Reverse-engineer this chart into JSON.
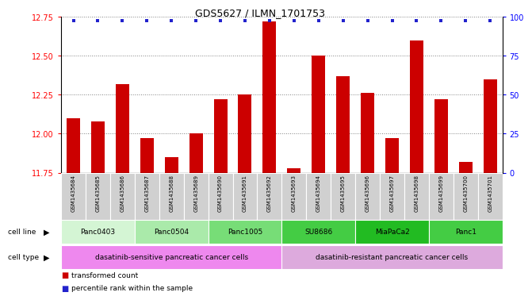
{
  "title": "GDS5627 / ILMN_1701753",
  "samples": [
    "GSM1435684",
    "GSM1435685",
    "GSM1435686",
    "GSM1435687",
    "GSM1435688",
    "GSM1435689",
    "GSM1435690",
    "GSM1435691",
    "GSM1435692",
    "GSM1435693",
    "GSM1435694",
    "GSM1435695",
    "GSM1435696",
    "GSM1435697",
    "GSM1435698",
    "GSM1435699",
    "GSM1435700",
    "GSM1435701"
  ],
  "transformed_count": [
    12.1,
    12.08,
    12.32,
    11.97,
    11.85,
    12.0,
    12.22,
    12.25,
    12.72,
    11.78,
    12.5,
    12.37,
    12.26,
    11.97,
    12.6,
    12.22,
    11.82,
    12.35
  ],
  "bar_color": "#cc0000",
  "dot_color": "#2222cc",
  "ylim_left": [
    11.75,
    12.75
  ],
  "yticks_left": [
    11.75,
    12.0,
    12.25,
    12.5,
    12.75
  ],
  "yticks_right": [
    0,
    25,
    50,
    75,
    100
  ],
  "cl_groups": [
    {
      "label": "Panc0403",
      "start": 0,
      "end": 2,
      "color": "#d4f5d4"
    },
    {
      "label": "Panc0504",
      "start": 3,
      "end": 5,
      "color": "#aaeaaa"
    },
    {
      "label": "Panc1005",
      "start": 6,
      "end": 8,
      "color": "#77dd77"
    },
    {
      "label": "SU8686",
      "start": 9,
      "end": 11,
      "color": "#44cc44"
    },
    {
      "label": "MiaPaCa2",
      "start": 12,
      "end": 14,
      "color": "#22bb22"
    },
    {
      "label": "Panc1",
      "start": 15,
      "end": 17,
      "color": "#44cc44"
    }
  ],
  "ct_groups": [
    {
      "label": "dasatinib-sensitive pancreatic cancer cells",
      "start": 0,
      "end": 8,
      "color": "#ee88ee"
    },
    {
      "label": "dasatinib-resistant pancreatic cancer cells",
      "start": 9,
      "end": 17,
      "color": "#ddaadd"
    }
  ],
  "legend": [
    {
      "color": "#cc0000",
      "marker": "s",
      "label": "transformed count"
    },
    {
      "color": "#2222cc",
      "marker": "s",
      "label": "percentile rank within the sample"
    }
  ]
}
